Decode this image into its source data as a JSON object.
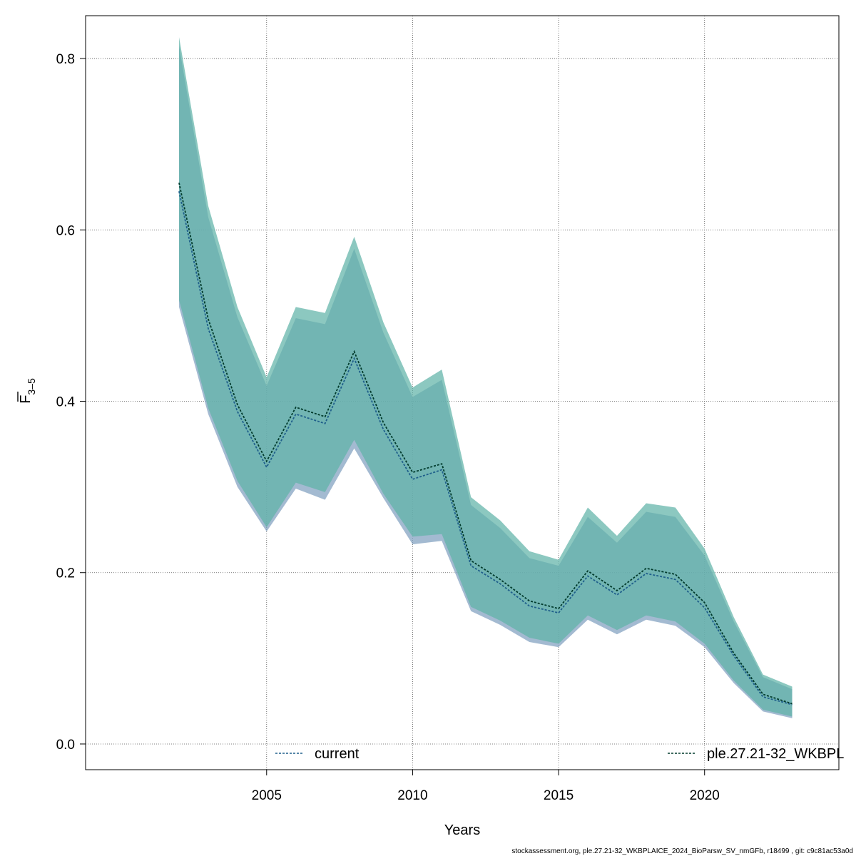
{
  "chart_data": {
    "type": "line",
    "x": [
      2002,
      2003,
      2004,
      2005,
      2006,
      2007,
      2008,
      2009,
      2010,
      2011,
      2012,
      2013,
      2014,
      2015,
      2016,
      2017,
      2018,
      2019,
      2020,
      2021,
      2022,
      2023
    ],
    "series": [
      {
        "name": "current",
        "values": [
          0.645,
          0.485,
          0.388,
          0.323,
          0.385,
          0.374,
          0.45,
          0.367,
          0.309,
          0.32,
          0.208,
          0.187,
          0.161,
          0.153,
          0.196,
          0.174,
          0.199,
          0.192,
          0.159,
          0.103,
          0.055,
          0.046
        ],
        "lower": [
          0.51,
          0.385,
          0.3,
          0.248,
          0.298,
          0.285,
          0.345,
          0.287,
          0.233,
          0.237,
          0.155,
          0.139,
          0.119,
          0.113,
          0.145,
          0.128,
          0.145,
          0.138,
          0.113,
          0.071,
          0.038,
          0.03
        ],
        "upper": [
          0.815,
          0.615,
          0.498,
          0.418,
          0.497,
          0.49,
          0.578,
          0.48,
          0.405,
          0.425,
          0.279,
          0.252,
          0.217,
          0.208,
          0.265,
          0.235,
          0.271,
          0.265,
          0.22,
          0.143,
          0.078,
          0.064
        ],
        "color": "#1f5f8b",
        "band_color": "#7fa0bf"
      },
      {
        "name": "ple.27.21-32_WKBPL",
        "values": [
          0.655,
          0.496,
          0.396,
          0.33,
          0.393,
          0.382,
          0.458,
          0.375,
          0.317,
          0.327,
          0.214,
          0.192,
          0.167,
          0.158,
          0.202,
          0.179,
          0.205,
          0.198,
          0.165,
          0.106,
          0.058,
          0.047
        ],
        "lower": [
          0.518,
          0.392,
          0.307,
          0.253,
          0.305,
          0.294,
          0.355,
          0.292,
          0.242,
          0.245,
          0.16,
          0.144,
          0.124,
          0.117,
          0.15,
          0.133,
          0.15,
          0.143,
          0.117,
          0.074,
          0.04,
          0.032
        ],
        "upper": [
          0.825,
          0.628,
          0.51,
          0.428,
          0.51,
          0.503,
          0.592,
          0.492,
          0.416,
          0.437,
          0.288,
          0.261,
          0.225,
          0.215,
          0.276,
          0.243,
          0.281,
          0.276,
          0.228,
          0.148,
          0.081,
          0.067
        ],
        "color": "#003a2c",
        "band_color": "#5fb3a8"
      }
    ],
    "xlabel": "Years",
    "ylabel": "F̄₃₋₅",
    "ylabel_main": "F",
    "ylabel_sub": "3–5",
    "xlim": [
      1998.8,
      2024.6
    ],
    "ylim": [
      -0.03,
      0.85
    ],
    "x_ticks": [
      2005,
      2010,
      2015,
      2020
    ],
    "y_ticks": [
      0.0,
      0.2,
      0.4,
      0.6,
      0.8
    ],
    "y_tick_labels": [
      "0.0",
      "0.2",
      "0.4",
      "0.6",
      "0.8"
    ],
    "grid": true,
    "legend_placement": "bottom"
  },
  "footer": "stockassessment.org, ple.27.21-32_WKBPLAICE_2024_BioParsw_SV_nmGFb, r18499 , git: c9c81ac53a0d"
}
